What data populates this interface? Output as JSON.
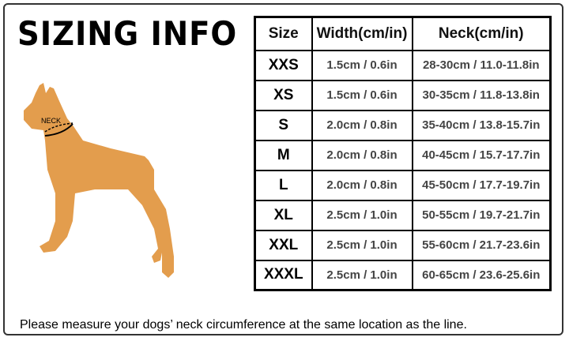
{
  "title": "SIZING INFO",
  "illustration": {
    "label": "NECK",
    "dog_color": "#e39d4d"
  },
  "table": {
    "headers": [
      "Size",
      "Width(cm/in)",
      "Neck(cm/in)"
    ],
    "rows": [
      [
        "XXS",
        "1.5cm / 0.6in",
        "28-30cm / 11.0-11.8in"
      ],
      [
        "XS",
        "1.5cm / 0.6in",
        "30-35cm / 11.8-13.8in"
      ],
      [
        "S",
        "2.0cm / 0.8in",
        "35-40cm / 13.8-15.7in"
      ],
      [
        "M",
        "2.0cm / 0.8in",
        "40-45cm / 15.7-17.7in"
      ],
      [
        "L",
        "2.0cm / 0.8in",
        "45-50cm / 17.7-19.7in"
      ],
      [
        "XL",
        "2.5cm / 1.0in",
        "50-55cm / 19.7-21.7in"
      ],
      [
        "XXL",
        "2.5cm / 1.0in",
        "55-60cm / 21.7-23.6in"
      ],
      [
        "XXXL",
        "2.5cm / 1.0in",
        "60-65cm / 23.6-25.6in"
      ]
    ]
  },
  "note": "Please measure your dogs’  neck circumference at the same location as the line."
}
